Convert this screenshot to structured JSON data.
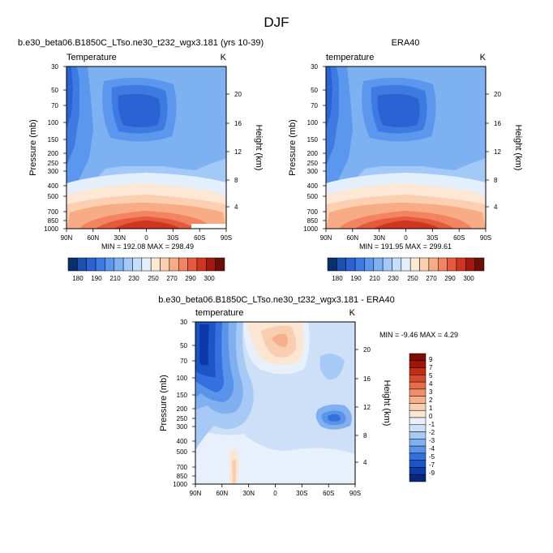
{
  "page_title": "DJF",
  "colors": {
    "temperature_scale": [
      "#08306b",
      "#1b4fb0",
      "#2b63d4",
      "#3d7be2",
      "#5b97ec",
      "#7eb1f2",
      "#a2c9f7",
      "#c6def9",
      "#e3effb",
      "#fde8d6",
      "#fbcfb0",
      "#f7ac86",
      "#f28462",
      "#e65a3c",
      "#cf3521",
      "#a3180f",
      "#6d0d08"
    ],
    "difference_scale": [
      "#08267a",
      "#0c3aa8",
      "#1c55c8",
      "#3471de",
      "#5a93ea",
      "#80b0f0",
      "#a6c9f5",
      "#cde0f8",
      "#e8f1fb",
      "#fbe6d3",
      "#f8cdb0",
      "#f5b08b",
      "#f0906a",
      "#e66c4a",
      "#d84a2e",
      "#c22d16",
      "#a01508",
      "#7a0d05"
    ]
  },
  "chart_data": [
    {
      "type": "heatmap",
      "title_left": "b.e30_beta06.B1850C_LTso.ne30_t232_wgx3.181 (yrs 10-39)",
      "subtitle_left": "Temperature",
      "subtitle_right": "K",
      "ylabel": "Pressure (mb)",
      "ylabel_right": "Height (km)",
      "x_ticks": [
        "90N",
        "60N",
        "30N",
        "0",
        "30S",
        "60S",
        "90S"
      ],
      "y_ticks": [
        "30",
        "50",
        "70",
        "100",
        "150",
        "200",
        "250",
        "300",
        "400",
        "500",
        "700",
        "850",
        "1000"
      ],
      "y_ticks_right": [
        "20",
        "16",
        "12",
        "8",
        "4"
      ],
      "stats": "MIN = 192.08   MAX = 298.49",
      "colorbar_labels": [
        "180",
        "190",
        "210",
        "230",
        "250",
        "270",
        "290",
        "300"
      ],
      "value_range": [
        192.08,
        298.49
      ]
    },
    {
      "type": "heatmap",
      "title_center": "ERA40",
      "subtitle_left": "temperature",
      "subtitle_right": "K",
      "ylabel": "Pressure (mb)",
      "ylabel_right": "Height (km)",
      "x_ticks": [
        "90N",
        "60N",
        "30N",
        "0",
        "30S",
        "60S",
        "90S"
      ],
      "y_ticks": [
        "30",
        "50",
        "70",
        "100",
        "150",
        "200",
        "250",
        "300",
        "400",
        "500",
        "700",
        "850",
        "1000"
      ],
      "y_ticks_right": [
        "20",
        "16",
        "12",
        "8",
        "4"
      ],
      "stats": "MIN = 191.95   MAX = 299.61",
      "colorbar_labels": [
        "180",
        "190",
        "210",
        "230",
        "250",
        "270",
        "290",
        "300"
      ],
      "value_range": [
        191.95,
        299.61
      ]
    },
    {
      "type": "heatmap",
      "title_center": "b.e30_beta06.B1850C_LTso.ne30_t232_wgx3.181 - ERA40",
      "subtitle_left": "temperature",
      "subtitle_right": "K",
      "ylabel": "Pressure (mb)",
      "ylabel_right": "Height (km)",
      "x_ticks": [
        "90N",
        "60N",
        "30N",
        "0",
        "30S",
        "60S",
        "90S"
      ],
      "y_ticks": [
        "30",
        "50",
        "70",
        "100",
        "150",
        "200",
        "250",
        "300",
        "400",
        "500",
        "700",
        "850",
        "1000"
      ],
      "y_ticks_right": [
        "20",
        "16",
        "12",
        "8",
        "4"
      ],
      "stats": "MIN = -9.46   MAX =  4.29",
      "colorbar_labels": [
        "9",
        "7",
        "5",
        "4",
        "3",
        "2",
        "1",
        "0",
        "-1",
        "-2",
        "-3",
        "-4",
        "-5",
        "-7",
        "-9"
      ],
      "value_range": [
        -9.46,
        4.29
      ]
    }
  ]
}
